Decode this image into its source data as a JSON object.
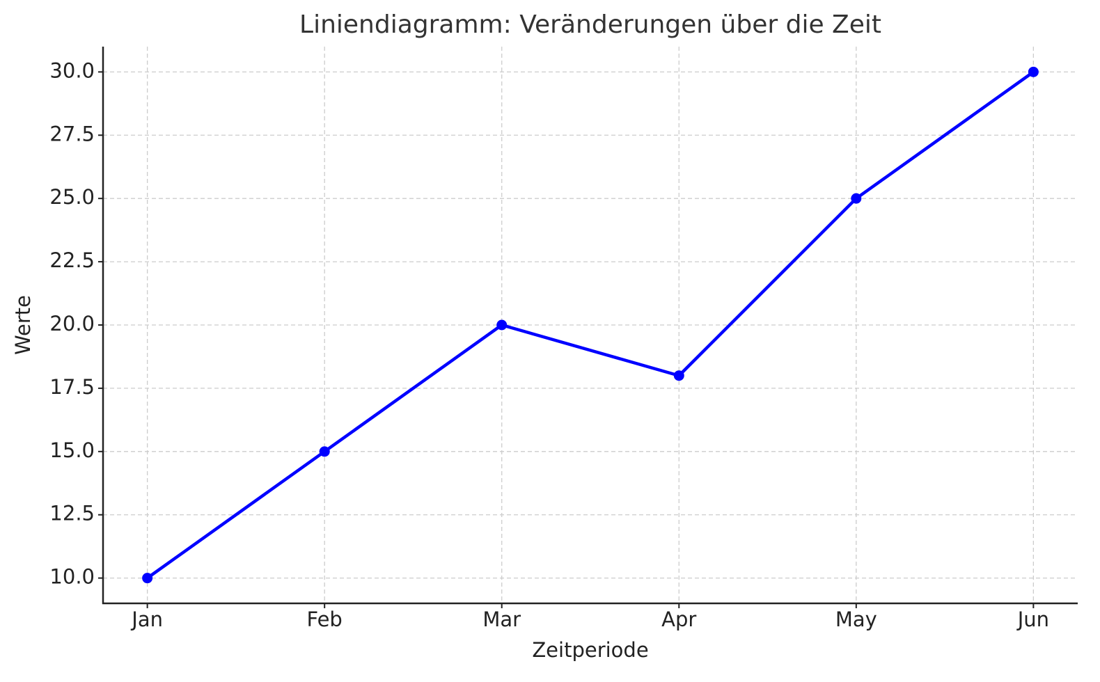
{
  "chart_data": {
    "type": "line",
    "title": "Liniendiagramm: Veränderungen über die Zeit",
    "x_label": "Zeitperiode",
    "y_label": "Werte",
    "categories": [
      "Jan",
      "Feb",
      "Mar",
      "Apr",
      "May",
      "Jun"
    ],
    "values": [
      10,
      15,
      20,
      18,
      25,
      30
    ],
    "color": "#0000ff",
    "ylim": [
      9,
      31
    ],
    "yticks": [
      {
        "value": 10,
        "label": "10.0"
      },
      {
        "value": 12.5,
        "label": "12.5"
      },
      {
        "value": 15,
        "label": "15.0"
      },
      {
        "value": 17.5,
        "label": "17.5"
      },
      {
        "value": 20,
        "label": "20.0"
      },
      {
        "value": 22.5,
        "label": "22.5"
      },
      {
        "value": 25,
        "label": "25.0"
      },
      {
        "value": 27.5,
        "label": "27.5"
      },
      {
        "value": 30,
        "label": "30.0"
      }
    ],
    "grid": true
  }
}
